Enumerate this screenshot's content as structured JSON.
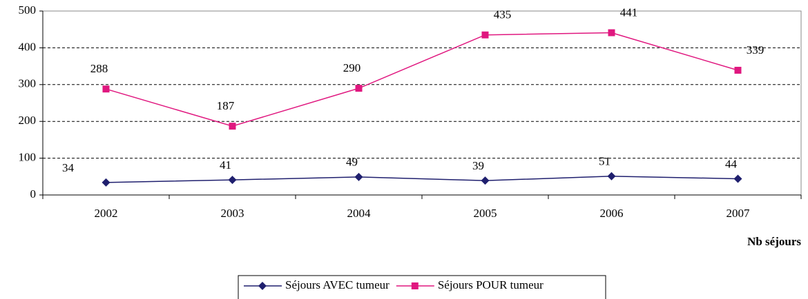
{
  "chart_data": {
    "type": "line",
    "categories": [
      "2002",
      "2003",
      "2004",
      "2005",
      "2006",
      "2007"
    ],
    "series": [
      {
        "name": "Séjours AVEC tumeur",
        "color": "#1f1f6e",
        "marker": "diamond",
        "values": [
          34,
          41,
          49,
          39,
          51,
          44
        ]
      },
      {
        "name": "Séjours POUR tumeur",
        "color": "#e0177f",
        "marker": "square",
        "values": [
          288,
          187,
          290,
          435,
          441,
          339
        ]
      }
    ],
    "ylim": [
      0,
      500
    ],
    "yticks": [
      0,
      100,
      200,
      300,
      400,
      500
    ],
    "grid": true,
    "xlabel": "Nb séjours",
    "legend": "bottom"
  }
}
